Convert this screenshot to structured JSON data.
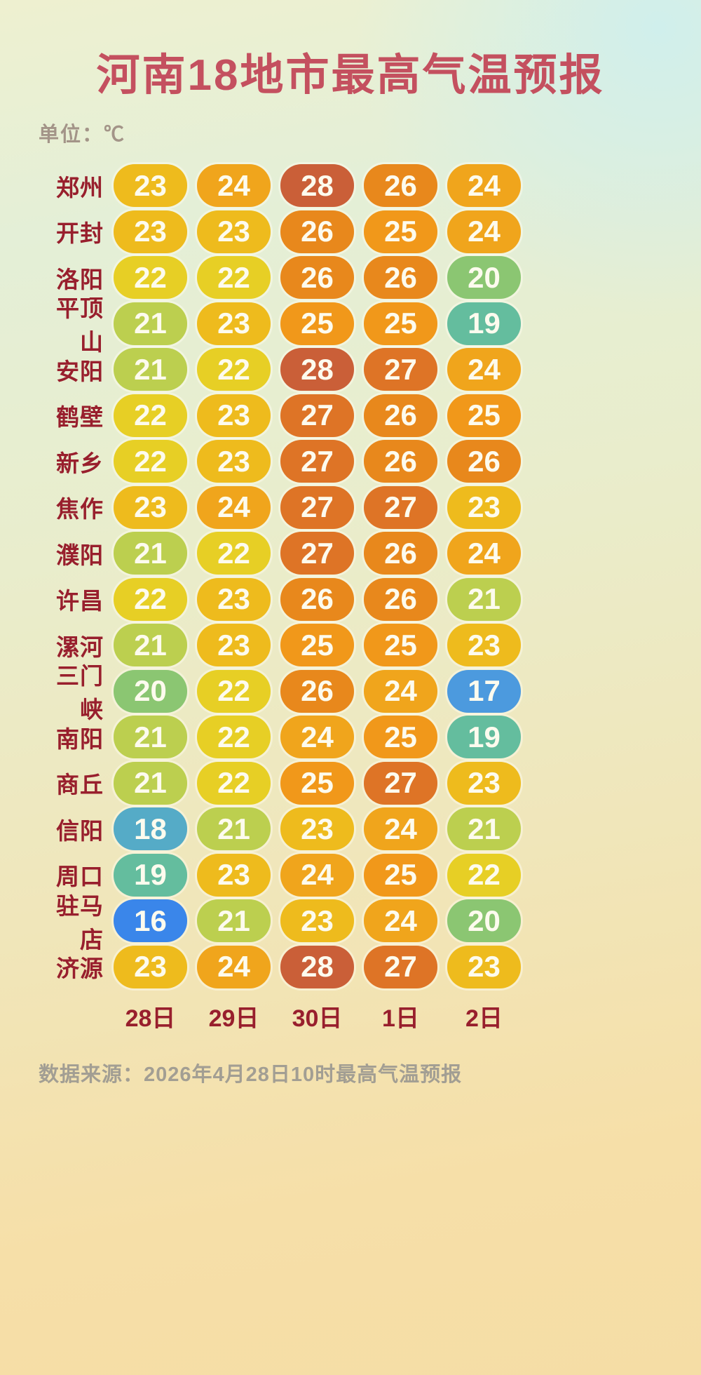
{
  "title": "河南18地市最高气温预报",
  "unit_label": "单位：℃",
  "footer": "数据来源：2026年4月28日10时最高气温预报",
  "chart_data": {
    "type": "heatmap",
    "title": "河南18地市最高气温预报",
    "unit": "℃",
    "columns": [
      "28日",
      "29日",
      "30日",
      "1日",
      "2日"
    ],
    "rows": [
      {
        "city": "郑州",
        "values": [
          23,
          24,
          28,
          26,
          24
        ]
      },
      {
        "city": "开封",
        "values": [
          23,
          23,
          26,
          25,
          24
        ]
      },
      {
        "city": "洛阳",
        "values": [
          22,
          22,
          26,
          26,
          20
        ]
      },
      {
        "city": "平顶山",
        "values": [
          21,
          23,
          25,
          25,
          19
        ]
      },
      {
        "city": "安阳",
        "values": [
          21,
          22,
          28,
          27,
          24
        ]
      },
      {
        "city": "鹤壁",
        "values": [
          22,
          23,
          27,
          26,
          25
        ]
      },
      {
        "city": "新乡",
        "values": [
          22,
          23,
          27,
          26,
          26
        ]
      },
      {
        "city": "焦作",
        "values": [
          23,
          24,
          27,
          27,
          23
        ]
      },
      {
        "city": "濮阳",
        "values": [
          21,
          22,
          27,
          26,
          24
        ]
      },
      {
        "city": "许昌",
        "values": [
          22,
          23,
          26,
          26,
          21
        ]
      },
      {
        "city": "漯河",
        "values": [
          21,
          23,
          25,
          25,
          23
        ]
      },
      {
        "city": "三门峡",
        "values": [
          20,
          22,
          26,
          24,
          17
        ]
      },
      {
        "city": "南阳",
        "values": [
          21,
          22,
          24,
          25,
          19
        ]
      },
      {
        "city": "商丘",
        "values": [
          21,
          22,
          25,
          27,
          23
        ]
      },
      {
        "city": "信阳",
        "values": [
          18,
          21,
          23,
          24,
          21
        ]
      },
      {
        "city": "周口",
        "values": [
          19,
          23,
          24,
          25,
          22
        ]
      },
      {
        "city": "驻马店",
        "values": [
          16,
          21,
          23,
          24,
          20
        ]
      },
      {
        "city": "济源",
        "values": [
          23,
          24,
          28,
          27,
          23
        ]
      }
    ],
    "color_scale": {
      "16": "#3a86ea",
      "17": "#4c9ade",
      "18": "#55abc7",
      "19": "#64bd9e",
      "20": "#8bc672",
      "21": "#bccf4f",
      "22": "#e7cf25",
      "23": "#eebb1d",
      "24": "#f0a51c",
      "25": "#f1981a",
      "26": "#e8881c",
      "27": "#de7426",
      "28": "#ca5f38"
    },
    "legend_position": "none",
    "grid": false
  },
  "theme": {
    "title_color": "#c4505f",
    "city_label_color": "#981f2d",
    "date_label_color": "#981f2d",
    "unit_label_color": "#a39488",
    "footer_color": "#a29e93",
    "pill_text_color": "#fdfbee"
  }
}
